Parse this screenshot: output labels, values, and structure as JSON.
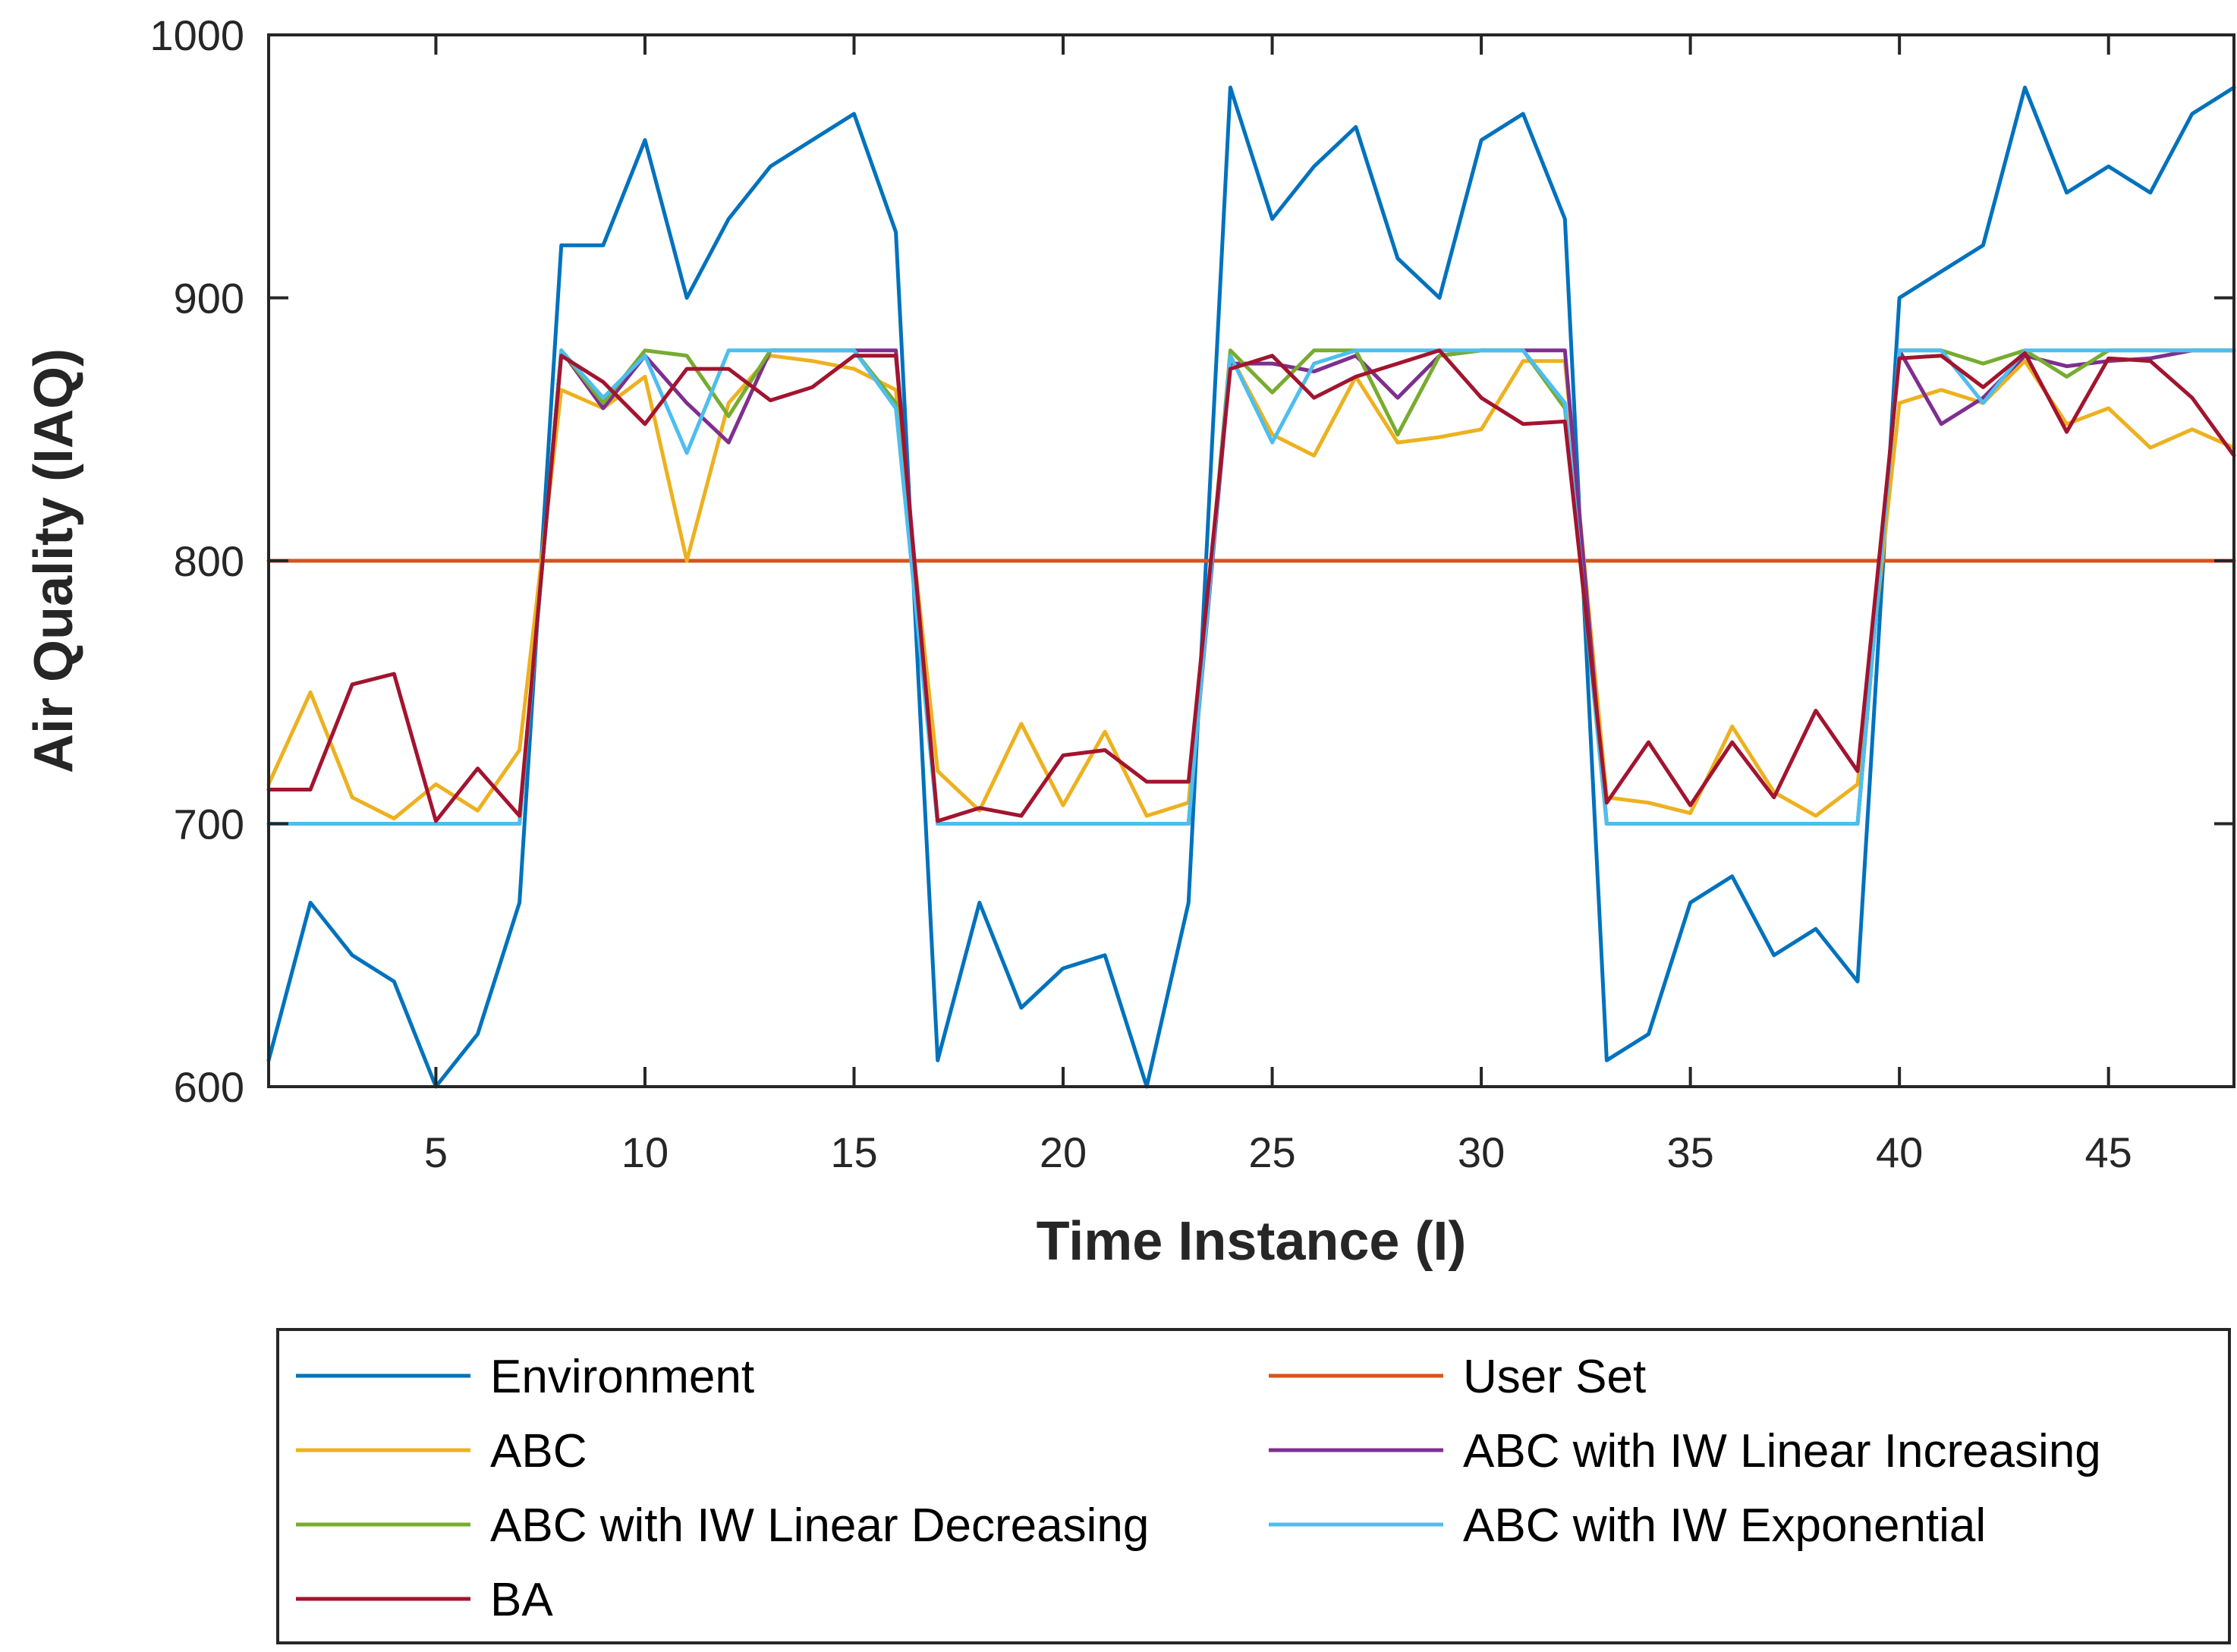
{
  "chart_data": {
    "type": "line",
    "xlabel": "Time Instance (I)",
    "ylabel": "Air Quality (IAQ)",
    "xlim": [
      1,
      48
    ],
    "ylim": [
      600,
      1000
    ],
    "xticks": [
      5,
      10,
      15,
      20,
      25,
      30,
      35,
      40,
      45
    ],
    "yticks": [
      600,
      700,
      800,
      900,
      1000
    ],
    "grid": false,
    "legend_position": "bottom",
    "x": [
      1,
      2,
      3,
      4,
      5,
      6,
      7,
      8,
      9,
      10,
      11,
      12,
      13,
      14,
      15,
      16,
      17,
      18,
      19,
      20,
      21,
      22,
      23,
      24,
      25,
      26,
      27,
      28,
      29,
      30,
      31,
      32,
      33,
      34,
      35,
      36,
      37,
      38,
      39,
      40,
      41,
      42,
      43,
      44,
      45,
      46,
      47,
      48
    ],
    "series": [
      {
        "name": "Environment",
        "color": "#0072BD",
        "values": [
          610,
          670,
          650,
          640,
          600,
          620,
          670,
          920,
          920,
          960,
          900,
          930,
          950,
          960,
          970,
          925,
          610,
          670,
          630,
          645,
          650,
          600,
          670,
          980,
          930,
          950,
          965,
          915,
          900,
          960,
          970,
          930,
          610,
          620,
          670,
          680,
          650,
          660,
          640,
          900,
          910,
          920,
          980,
          940,
          950,
          940,
          970,
          980
        ]
      },
      {
        "name": "User Set",
        "color": "#D95319",
        "values": [
          800,
          800,
          800,
          800,
          800,
          800,
          800,
          800,
          800,
          800,
          800,
          800,
          800,
          800,
          800,
          800,
          800,
          800,
          800,
          800,
          800,
          800,
          800,
          800,
          800,
          800,
          800,
          800,
          800,
          800,
          800,
          800,
          800,
          800,
          800,
          800,
          800,
          800,
          800,
          800,
          800,
          800,
          800,
          800,
          800,
          800,
          800,
          800
        ]
      },
      {
        "name": "ABC",
        "color": "#EDB120",
        "values": [
          715,
          750,
          710,
          702,
          715,
          705,
          728,
          865,
          858,
          870,
          800,
          860,
          878,
          876,
          873,
          865,
          720,
          705,
          738,
          707,
          735,
          703,
          708,
          878,
          848,
          840,
          870,
          845,
          847,
          850,
          876,
          876,
          710,
          708,
          704,
          737,
          712,
          703,
          715,
          860,
          865,
          860,
          876,
          852,
          858,
          843,
          850,
          843
        ]
      },
      {
        "name": "ABC with IW Linear Increasing",
        "color": "#7E2F8E",
        "values": [
          700,
          700,
          700,
          700,
          700,
          700,
          700,
          880,
          858,
          878,
          860,
          845,
          880,
          880,
          880,
          880,
          700,
          700,
          700,
          700,
          700,
          700,
          700,
          875,
          875,
          872,
          878,
          862,
          878,
          880,
          880,
          880,
          700,
          700,
          700,
          700,
          700,
          700,
          700,
          880,
          852,
          862,
          878,
          874,
          876,
          877,
          880,
          880
        ]
      },
      {
        "name": "ABC with IW Linear Decreasing",
        "color": "#77AC30",
        "values": [
          700,
          700,
          700,
          700,
          700,
          700,
          700,
          880,
          860,
          880,
          878,
          855,
          880,
          880,
          880,
          860,
          700,
          700,
          700,
          700,
          700,
          700,
          700,
          880,
          864,
          880,
          880,
          848,
          878,
          880,
          880,
          858,
          700,
          700,
          700,
          700,
          700,
          700,
          700,
          880,
          880,
          875,
          880,
          870,
          880,
          880,
          880,
          880
        ]
      },
      {
        "name": "ABC with IW Exponential",
        "color": "#4DBEEE",
        "values": [
          700,
          700,
          700,
          700,
          700,
          700,
          700,
          880,
          862,
          878,
          841,
          880,
          880,
          880,
          880,
          858,
          700,
          700,
          700,
          700,
          700,
          700,
          700,
          878,
          845,
          875,
          880,
          880,
          880,
          880,
          880,
          860,
          700,
          700,
          700,
          700,
          700,
          700,
          700,
          880,
          880,
          860,
          880,
          880,
          880,
          880,
          880,
          880
        ]
      },
      {
        "name": "BA",
        "color": "#A2142F",
        "values": [
          713,
          713,
          753,
          757,
          701,
          721,
          703,
          878,
          868,
          852,
          873,
          873,
          861,
          866,
          878,
          878,
          701,
          706,
          703,
          726,
          728,
          716,
          716,
          873,
          878,
          862,
          870,
          875,
          880,
          862,
          852,
          853,
          708,
          731,
          707,
          731,
          710,
          743,
          720,
          877,
          878,
          866,
          879,
          849,
          877,
          876,
          862,
          840
        ]
      }
    ]
  }
}
